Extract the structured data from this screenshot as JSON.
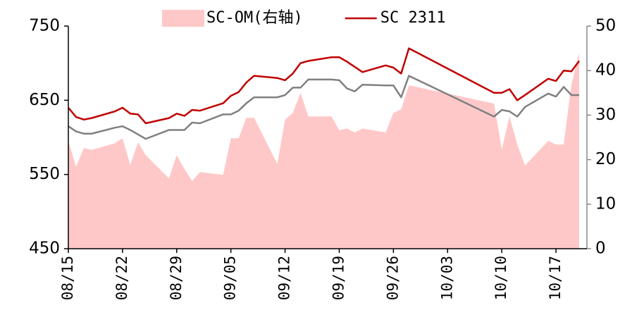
{
  "chart_data": {
    "type": "line",
    "x": [
      "08/15",
      "08/16",
      "08/17",
      "08/18",
      "08/21",
      "08/22",
      "08/23",
      "08/24",
      "08/25",
      "08/28",
      "08/29",
      "08/30",
      "08/31",
      "09/01",
      "09/04",
      "09/05",
      "09/06",
      "09/07",
      "09/08",
      "09/11",
      "09/12",
      "09/13",
      "09/14",
      "09/15",
      "09/18",
      "09/19",
      "09/20",
      "09/21",
      "09/22",
      "09/25",
      "09/26",
      "09/27",
      "09/28",
      "10/09",
      "10/10",
      "10/11",
      "10/12",
      "10/13",
      "10/16",
      "10/17",
      "10/18",
      "10/19",
      "10/20"
    ],
    "xlim": [
      "08/15",
      "10/21"
    ],
    "xticks": [
      "08/15",
      "08/22",
      "08/29",
      "09/05",
      "09/12",
      "09/19",
      "09/26",
      "10/03",
      "10/10",
      "10/17"
    ],
    "ylim": [
      450,
      750
    ],
    "yticks": [
      450,
      550,
      650,
      750
    ],
    "y2lim": [
      0,
      50
    ],
    "y2ticks": [
      0,
      10,
      20,
      30,
      40,
      50
    ],
    "series": [
      {
        "name": "SC-OM(右轴)",
        "type": "area",
        "axis": "y2",
        "color": "#ffc8c8",
        "values": [
          24.2,
          18.4,
          22.6,
          22.2,
          23.7,
          24.8,
          18.8,
          23.9,
          21,
          15.8,
          21,
          17.9,
          15.2,
          17.2,
          16.6,
          24.8,
          24.8,
          29.4,
          29.4,
          19,
          29,
          30.5,
          35,
          29.7,
          29.7,
          26.6,
          27,
          26.1,
          27,
          26.1,
          30.5,
          31.3,
          36.7,
          32.6,
          22.3,
          29.7,
          23.4,
          18.7,
          24.2,
          23.4,
          23.4,
          36.9,
          44
        ]
      },
      {
        "name": "SC 2311",
        "type": "line",
        "color": "#c00000",
        "values": [
          640,
          627.5,
          624,
          626,
          635,
          640,
          632,
          631,
          619,
          626,
          632,
          629,
          637,
          636,
          646,
          656,
          661,
          674,
          683,
          680,
          677,
          686,
          700,
          703,
          708,
          708,
          702,
          695,
          688,
          697,
          694,
          686,
          720,
          660,
          660,
          665,
          650,
          657,
          679,
          676,
          690,
          689,
          703
        ]
      },
      {
        "type": "line",
        "color": "#808080",
        "values": [
          615,
          608,
          605,
          605,
          613,
          615,
          610,
          604,
          598,
          610,
          610,
          610,
          620,
          619,
          631,
          631,
          636,
          646,
          654,
          654,
          657,
          667,
          667,
          678,
          678,
          677,
          666,
          662,
          671,
          670,
          670,
          654,
          683,
          628,
          637,
          635,
          628,
          641,
          659,
          655,
          668,
          657,
          657
        ]
      }
    ]
  }
}
